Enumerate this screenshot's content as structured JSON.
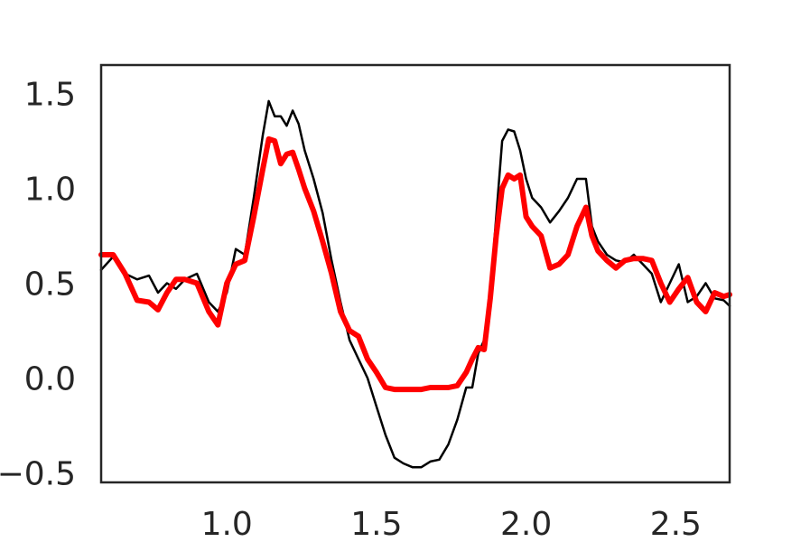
{
  "chart_data": {
    "type": "line",
    "title": "",
    "xlabel": "",
    "ylabel": "",
    "xlim": [
      0.58,
      2.68
    ],
    "ylim": [
      -0.55,
      1.65
    ],
    "grid": false,
    "xticks": [
      1.0,
      1.5,
      2.0,
      2.5
    ],
    "xtick_labels": [
      "1.0",
      "1.5",
      "2.0",
      "2.5"
    ],
    "yticks": [
      -0.5,
      0.0,
      0.5,
      1.0,
      1.5
    ],
    "ytick_labels": [
      "−0.5",
      "0.0",
      "0.5",
      "1.0",
      "1.5"
    ],
    "series": [
      {
        "color": "#000000",
        "x": [
          0.58,
          0.62,
          0.66,
          0.7,
          0.74,
          0.77,
          0.8,
          0.83,
          0.86,
          0.9,
          0.94,
          0.97,
          1.0,
          1.03,
          1.06,
          1.09,
          1.12,
          1.14,
          1.16,
          1.18,
          1.2,
          1.22,
          1.24,
          1.26,
          1.29,
          1.32,
          1.35,
          1.38,
          1.41,
          1.44,
          1.47,
          1.5,
          1.53,
          1.56,
          1.59,
          1.62,
          1.65,
          1.68,
          1.71,
          1.74,
          1.77,
          1.8,
          1.82,
          1.84,
          1.86,
          1.88,
          1.9,
          1.92,
          1.94,
          1.96,
          1.98,
          2.0,
          2.02,
          2.05,
          2.08,
          2.11,
          2.14,
          2.17,
          2.2,
          2.22,
          2.24,
          2.27,
          2.3,
          2.33,
          2.36,
          2.39,
          2.42,
          2.45,
          2.48,
          2.51,
          2.54,
          2.57,
          2.6,
          2.63,
          2.66,
          2.68
        ],
        "y": [
          0.57,
          0.64,
          0.55,
          0.52,
          0.54,
          0.45,
          0.5,
          0.47,
          0.52,
          0.55,
          0.4,
          0.35,
          0.45,
          0.68,
          0.65,
          0.95,
          1.28,
          1.46,
          1.38,
          1.38,
          1.33,
          1.41,
          1.34,
          1.2,
          1.05,
          0.87,
          0.62,
          0.4,
          0.2,
          0.1,
          0.0,
          -0.15,
          -0.3,
          -0.42,
          -0.45,
          -0.47,
          -0.47,
          -0.44,
          -0.43,
          -0.35,
          -0.22,
          -0.05,
          -0.05,
          0.13,
          0.2,
          0.45,
          0.85,
          1.25,
          1.31,
          1.3,
          1.2,
          1.05,
          0.95,
          0.9,
          0.82,
          0.88,
          0.95,
          1.05,
          1.05,
          0.8,
          0.72,
          0.65,
          0.62,
          0.61,
          0.65,
          0.6,
          0.55,
          0.4,
          0.5,
          0.6,
          0.4,
          0.43,
          0.5,
          0.42,
          0.41,
          0.38
        ]
      },
      {
        "color": "#ff0000",
        "x": [
          0.58,
          0.62,
          0.66,
          0.7,
          0.74,
          0.77,
          0.8,
          0.83,
          0.86,
          0.9,
          0.94,
          0.97,
          1.0,
          1.03,
          1.06,
          1.09,
          1.12,
          1.14,
          1.16,
          1.18,
          1.2,
          1.22,
          1.24,
          1.26,
          1.29,
          1.32,
          1.35,
          1.38,
          1.41,
          1.44,
          1.47,
          1.5,
          1.53,
          1.56,
          1.59,
          1.62,
          1.65,
          1.68,
          1.71,
          1.74,
          1.77,
          1.8,
          1.82,
          1.84,
          1.86,
          1.88,
          1.9,
          1.92,
          1.94,
          1.96,
          1.98,
          2.0,
          2.02,
          2.05,
          2.08,
          2.11,
          2.14,
          2.17,
          2.2,
          2.22,
          2.24,
          2.27,
          2.3,
          2.33,
          2.36,
          2.39,
          2.42,
          2.45,
          2.48,
          2.51,
          2.54,
          2.57,
          2.6,
          2.63,
          2.66,
          2.68
        ],
        "y": [
          0.65,
          0.65,
          0.55,
          0.41,
          0.4,
          0.36,
          0.45,
          0.52,
          0.52,
          0.5,
          0.35,
          0.28,
          0.5,
          0.6,
          0.62,
          0.85,
          1.1,
          1.26,
          1.25,
          1.13,
          1.18,
          1.19,
          1.1,
          1.0,
          0.88,
          0.72,
          0.55,
          0.35,
          0.25,
          0.22,
          0.1,
          0.03,
          -0.05,
          -0.06,
          -0.06,
          -0.06,
          -0.06,
          -0.05,
          -0.05,
          -0.05,
          -0.04,
          0.03,
          0.1,
          0.16,
          0.15,
          0.42,
          0.75,
          1.0,
          1.07,
          1.05,
          1.07,
          0.85,
          0.8,
          0.75,
          0.58,
          0.6,
          0.65,
          0.8,
          0.9,
          0.75,
          0.67,
          0.62,
          0.58,
          0.62,
          0.63,
          0.63,
          0.62,
          0.5,
          0.4,
          0.47,
          0.53,
          0.4,
          0.35,
          0.45,
          0.43,
          0.44
        ]
      }
    ]
  }
}
